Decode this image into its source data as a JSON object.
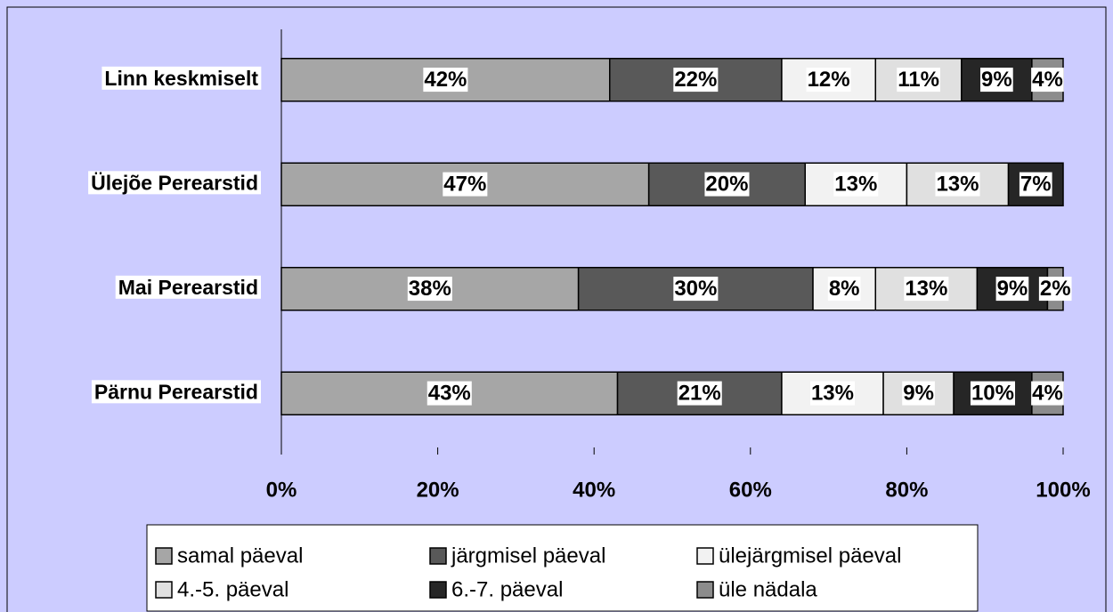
{
  "chart_data": {
    "type": "stacked-barh",
    "categories": [
      "Linn keskmiselt",
      "Ülejõe Perearstid",
      "Mai Perearstid",
      "Pärnu Perearstid"
    ],
    "series": [
      {
        "name": "samal päeval",
        "color": "#a6a6a6",
        "values": [
          42,
          47,
          38,
          43
        ],
        "value_labels": [
          "42%",
          "47%",
          "38%",
          "43%"
        ]
      },
      {
        "name": "järgmisel päeval",
        "color": "#595959",
        "values": [
          22,
          20,
          30,
          21
        ],
        "value_labels": [
          "22%",
          "20%",
          "30%",
          "21%"
        ]
      },
      {
        "name": "ülejärgmisel päeval",
        "color": "#f2f2f2",
        "values": [
          12,
          13,
          8,
          13
        ],
        "value_labels": [
          "12%",
          "13%",
          "8%",
          "13%"
        ]
      },
      {
        "name": "4.-5. päeval",
        "color": "#e0e0e0",
        "values": [
          11,
          13,
          13,
          9
        ],
        "value_labels": [
          "11%",
          "13%",
          "13%",
          "9%"
        ]
      },
      {
        "name": "6.-7. päeval",
        "color": "#262626",
        "values": [
          9,
          7,
          9,
          10
        ],
        "value_labels": [
          "9%",
          "7%",
          "9%",
          "10%"
        ]
      },
      {
        "name": "üle nädala",
        "color": "#8c8c8c",
        "values": [
          4,
          null,
          2,
          4
        ],
        "value_labels": [
          "4%",
          null,
          "2%",
          "4%"
        ]
      }
    ],
    "xlim": [
      0,
      100
    ],
    "xticks": [
      {
        "value": 0,
        "label": "0%"
      },
      {
        "value": 20,
        "label": "20%"
      },
      {
        "value": 40,
        "label": "40%"
      },
      {
        "value": 60,
        "label": "60%"
      },
      {
        "value": 80,
        "label": "80%"
      },
      {
        "value": 100,
        "label": "100%"
      }
    ],
    "legend": "bottom"
  }
}
